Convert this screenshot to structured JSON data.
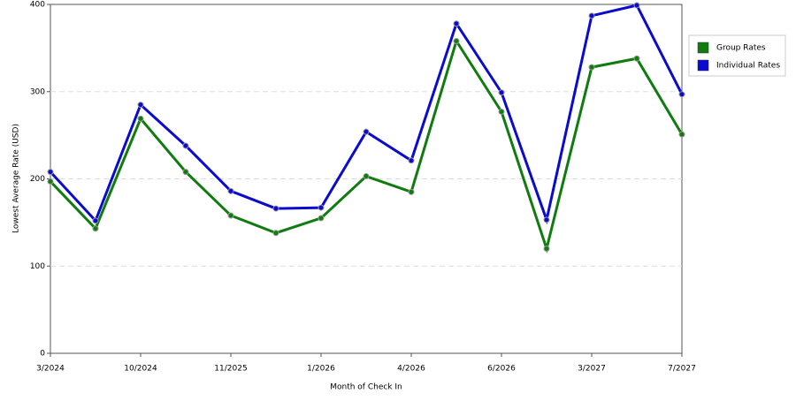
{
  "chart_data": {
    "type": "line",
    "x_label": "Month of Check In",
    "y_label": "Lowest Average Rate (USD)",
    "categories": [
      "3/2024",
      null,
      "10/2024",
      null,
      "11/2025",
      null,
      "1/2026",
      null,
      "4/2026",
      null,
      "6/2026",
      null,
      "3/2027",
      null,
      "7/2027"
    ],
    "series": [
      {
        "name": "Group Rates",
        "color": "#107c10",
        "values": [
          197,
          143,
          269,
          208,
          158,
          138,
          155,
          203,
          185,
          358,
          277,
          120,
          328,
          338,
          251
        ]
      },
      {
        "name": "Individual Rates",
        "color": "#0a0ad0",
        "values": [
          208,
          152,
          285,
          238,
          186,
          166,
          167,
          254,
          221,
          378,
          299,
          153,
          387,
          399,
          297
        ]
      }
    ],
    "ylim": [
      0,
      400
    ],
    "yticks": [
      0,
      100,
      200,
      300,
      400
    ],
    "grid": true,
    "legend": "right"
  }
}
